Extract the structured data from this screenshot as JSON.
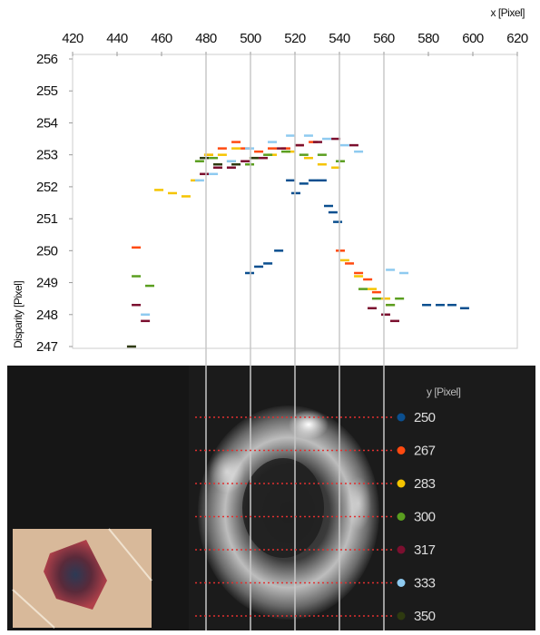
{
  "chart_data": {
    "type": "scatter",
    "x_label": "x [Pixel]",
    "y_label": "Disparity [Pixel]",
    "legend_title": "y [Pixel]",
    "xlim": [
      420,
      620
    ],
    "xticks": [
      420,
      440,
      460,
      480,
      500,
      520,
      540,
      560,
      580,
      600,
      620
    ],
    "ylim": [
      247,
      256
    ],
    "yticks": [
      247,
      248,
      249,
      250,
      251,
      252,
      253,
      254,
      255,
      256
    ],
    "series": [
      {
        "name": "250",
        "color": "#0b4f8f",
        "x": [
          499.6,
          503.7,
          507.8,
          512.7,
          518,
          520.4,
          524,
          528.2,
          532.2,
          535.1,
          537.1,
          539.2,
          579.2,
          585.3,
          590.6,
          596.3
        ],
        "values": [
          249.3,
          249.5,
          249.6,
          250.0,
          252.2,
          251.8,
          252.1,
          252.2,
          252.2,
          251.4,
          251.2,
          250.9,
          248.3,
          248.3,
          248.3,
          248.2
        ]
      },
      {
        "name": "267",
        "color": "#ff4a10",
        "x": [
          448.6,
          481.2,
          487.3,
          493.5,
          497.6,
          503.7,
          509.8,
          515.9,
          522,
          528.2,
          540.4,
          544.5,
          548.6,
          552.7,
          556.7,
          562.9
        ],
        "values": [
          250.1,
          253.0,
          253.2,
          253.4,
          253.2,
          253.1,
          253.2,
          253.2,
          253.3,
          253.4,
          250.0,
          249.6,
          249.3,
          249.1,
          248.7,
          248.3
        ]
      },
      {
        "name": "283",
        "color": "#f5c400",
        "x": [
          458.8,
          464.9,
          471.0,
          475.1,
          481.2,
          487.3,
          493.5,
          501.6,
          509.8,
          518,
          526.1,
          532.2,
          538.4,
          542.4,
          548.6,
          554.7,
          560.8
        ],
        "values": [
          251.9,
          251.8,
          251.7,
          252.2,
          253.0,
          253.0,
          253.2,
          252.9,
          253.0,
          253.1,
          252.9,
          252.7,
          252.6,
          249.7,
          249.2,
          248.8,
          248.5
        ]
      },
      {
        "name": "300",
        "color": "#5a9e1f",
        "x": [
          448.6,
          454.7,
          477.1,
          483.3,
          491.4,
          499.6,
          507.8,
          515.9,
          524,
          532.2,
          540.4,
          550.6,
          556.7,
          562.9,
          567
        ],
        "values": [
          249.2,
          248.9,
          252.8,
          252.9,
          252.8,
          252.7,
          253.0,
          253.1,
          253.0,
          253.0,
          252.8,
          248.8,
          248.5,
          248.3,
          248.5
        ]
      },
      {
        "name": "317",
        "color": "#7b0f2f",
        "x": [
          448.6,
          452.7,
          479.2,
          485.3,
          491.4,
          497.6,
          505.7,
          513.9,
          522,
          530.2,
          538.4,
          546.5,
          554.7,
          560.8,
          564.9
        ],
        "values": [
          248.3,
          247.8,
          252.4,
          252.6,
          252.6,
          252.8,
          252.9,
          253.2,
          253.3,
          253.4,
          253.5,
          253.3,
          248.2,
          248.0,
          247.8
        ]
      },
      {
        "name": "333",
        "color": "#8ecaf0",
        "x": [
          452.7,
          477.1,
          483.3,
          491.4,
          499.6,
          509.8,
          518,
          526.1,
          534.3,
          542.4,
          548.6,
          562.9,
          569
        ],
        "values": [
          248.0,
          252.2,
          252.4,
          252.8,
          253.2,
          253.4,
          253.6,
          253.6,
          253.5,
          253.3,
          253.1,
          249.4,
          249.3
        ]
      },
      {
        "name": "350",
        "color": "#2e3a10",
        "x": [
          446.5,
          479.2,
          485.3,
          493.5,
          501.6
        ],
        "values": [
          247.0,
          252.9,
          252.7,
          252.7,
          252.9
        ]
      }
    ]
  }
}
